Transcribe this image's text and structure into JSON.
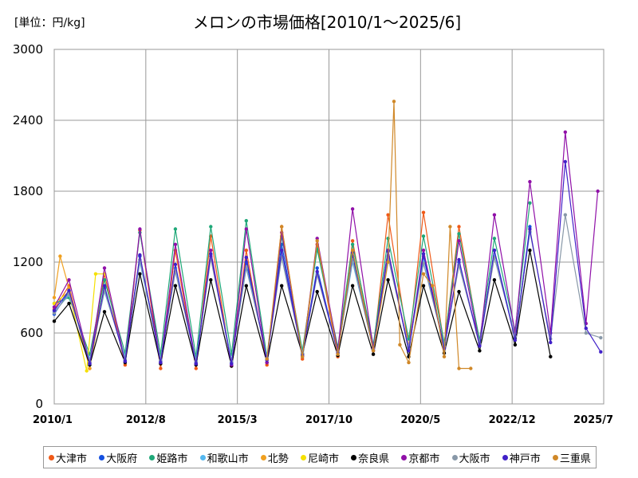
{
  "chart_data": {
    "type": "line",
    "title": "メロンの市場価格[2010/1～2025/6]",
    "unit_label": "[単位：円/kg]",
    "ylim": [
      0,
      3000
    ],
    "y_ticks": [
      "0",
      "600",
      "1200",
      "1800",
      "2400",
      "3000"
    ],
    "x_tick_labels": [
      "2010/1",
      "2012/8",
      "2015/3",
      "2017/10",
      "2020/5",
      "2022/12",
      "2025/7"
    ],
    "xlim": [
      "2010-01",
      "2025-07"
    ],
    "grid": true,
    "legend_position": "bottom",
    "series": [
      {
        "name": "大津市",
        "color": "#f05a18",
        "x": [
          "2010-01",
          "2010-06",
          "2011-01",
          "2011-06",
          "2012-01",
          "2012-06",
          "2013-01",
          "2013-06",
          "2014-01",
          "2014-06",
          "2015-01",
          "2015-06",
          "2016-01",
          "2016-06",
          "2017-01",
          "2017-06",
          "2018-01",
          "2018-06",
          "2019-01",
          "2019-06",
          "2020-01",
          "2020-06",
          "2021-01",
          "2021-06",
          "2022-01"
        ],
        "values": [
          800,
          1000,
          300,
          1100,
          330,
          1470,
          300,
          1300,
          300,
          1420,
          320,
          1300,
          330,
          1500,
          380,
          1350,
          400,
          1380,
          450,
          1600,
          480,
          1620,
          500,
          1500,
          520
        ]
      },
      {
        "name": "大阪府",
        "color": "#1550e0",
        "x": [
          "2010-01",
          "2010-06",
          "2011-01",
          "2011-06",
          "2012-01",
          "2012-06",
          "2013-01",
          "2013-06",
          "2014-01",
          "2014-06",
          "2015-01",
          "2015-06",
          "2016-01",
          "2016-06",
          "2017-01",
          "2017-06",
          "2018-01",
          "2018-06",
          "2019-01",
          "2019-06",
          "2020-01",
          "2020-06",
          "2021-01",
          "2021-06",
          "2022-01",
          "2022-06",
          "2023-01",
          "2023-06"
        ],
        "values": [
          760,
          950,
          350,
          980,
          370,
          1250,
          360,
          1150,
          350,
          1250,
          350,
          1200,
          380,
          1350,
          420,
          1150,
          430,
          1250,
          480,
          1300,
          450,
          1250,
          470,
          1200,
          500,
          1300,
          560,
          1500
        ]
      },
      {
        "name": "姫路市",
        "color": "#1fa878",
        "x": [
          "2010-01",
          "2010-06",
          "2011-01",
          "2011-06",
          "2012-01",
          "2012-06",
          "2013-01",
          "2013-06",
          "2014-01",
          "2014-06",
          "2015-01",
          "2015-06",
          "2016-01",
          "2016-06",
          "2017-01",
          "2017-06",
          "2018-01",
          "2018-06",
          "2019-01",
          "2019-06",
          "2020-01",
          "2020-06",
          "2021-01",
          "2021-06",
          "2022-01",
          "2022-06",
          "2023-01",
          "2023-06"
        ],
        "values": [
          850,
          900,
          420,
          1050,
          430,
          1450,
          420,
          1480,
          400,
          1500,
          420,
          1550,
          400,
          1420,
          450,
          1310,
          480,
          1350,
          500,
          1400,
          550,
          1420,
          520,
          1440,
          540,
          1400,
          620,
          1700
        ]
      },
      {
        "name": "和歌山市",
        "color": "#55b8f0",
        "x": [
          "2010-01",
          "2010-06",
          "2011-01",
          "2011-06",
          "2012-01",
          "2012-06",
          "2013-01",
          "2013-06",
          "2014-01",
          "2014-06",
          "2015-01",
          "2015-06",
          "2016-01",
          "2016-06",
          "2017-01",
          "2017-06",
          "2018-01",
          "2018-06",
          "2019-01",
          "2019-06",
          "2020-01",
          "2020-06",
          "2021-01",
          "2021-06",
          "2022-01",
          "2022-06",
          "2023-01",
          "2023-06"
        ],
        "values": [
          780,
          920,
          380,
          950,
          400,
          1200,
          380,
          1150,
          370,
          1260,
          370,
          1150,
          400,
          1250,
          430,
          1100,
          450,
          1200,
          470,
          1250,
          480,
          1200,
          500,
          1180,
          520,
          1250,
          580,
          1450
        ]
      },
      {
        "name": "北勢",
        "color": "#f0a020",
        "x": [
          "2010-01",
          "2010-03",
          "2010-06",
          "2011-01",
          "2011-06"
        ],
        "values": [
          900,
          1250,
          980,
          300,
          1000
        ]
      },
      {
        "name": "尼崎市",
        "color": "#f5e000",
        "x": [
          "2010-01",
          "2010-06",
          "2010-12",
          "2011-03",
          "2011-06"
        ],
        "values": [
          850,
          950,
          280,
          1100,
          1100
        ]
      },
      {
        "name": "奈良県",
        "color": "#000000",
        "x": [
          "2010-01",
          "2010-06",
          "2011-01",
          "2011-06",
          "2012-01",
          "2012-06",
          "2013-01",
          "2013-06",
          "2014-01",
          "2014-06",
          "2015-01",
          "2015-06",
          "2016-01",
          "2016-06",
          "2017-01",
          "2017-06",
          "2018-01",
          "2018-06",
          "2019-01",
          "2019-06",
          "2020-01",
          "2020-06",
          "2021-01",
          "2021-06",
          "2022-01",
          "2022-06",
          "2023-01",
          "2023-06",
          "2024-01"
        ],
        "values": [
          700,
          850,
          330,
          780,
          350,
          1100,
          340,
          1000,
          330,
          1050,
          320,
          1000,
          350,
          1000,
          420,
          950,
          410,
          1000,
          420,
          1050,
          400,
          1000,
          430,
          950,
          450,
          1050,
          500,
          1300,
          400
        ]
      },
      {
        "name": "京都市",
        "color": "#9010a8",
        "x": [
          "2010-01",
          "2010-06",
          "2011-01",
          "2011-06",
          "2012-01",
          "2012-06",
          "2013-01",
          "2013-06",
          "2014-01",
          "2014-06",
          "2015-01",
          "2015-06",
          "2016-01",
          "2016-06",
          "2017-01",
          "2017-06",
          "2018-01",
          "2018-06",
          "2019-01",
          "2019-06",
          "2020-01",
          "2020-06",
          "2021-01",
          "2021-06",
          "2022-01",
          "2022-06",
          "2023-01",
          "2023-06",
          "2024-01",
          "2024-06",
          "2025-01",
          "2025-05"
        ],
        "values": [
          820,
          1050,
          350,
          1150,
          360,
          1480,
          350,
          1350,
          340,
          1300,
          330,
          1480,
          350,
          1450,
          400,
          1400,
          450,
          1650,
          470,
          1300,
          460,
          1300,
          480,
          1380,
          500,
          1600,
          600,
          1880,
          600,
          2300,
          680,
          1800
        ]
      },
      {
        "name": "大阪市",
        "color": "#8898a8",
        "x": [
          "2010-01",
          "2010-06",
          "2011-01",
          "2011-06",
          "2012-01",
          "2012-06",
          "2013-01",
          "2013-06",
          "2014-01",
          "2014-06",
          "2015-01",
          "2015-06",
          "2016-01",
          "2016-06",
          "2017-01",
          "2017-06",
          "2018-01",
          "2018-06",
          "2019-01",
          "2019-06",
          "2020-01",
          "2020-06",
          "2021-01",
          "2021-06",
          "2022-01",
          "2022-06",
          "2023-01",
          "2023-06",
          "2024-01",
          "2024-06",
          "2025-01",
          "2025-06"
        ],
        "values": [
          770,
          930,
          360,
          960,
          380,
          1220,
          370,
          1120,
          360,
          1230,
          360,
          1160,
          390,
          1240,
          420,
          1090,
          440,
          1220,
          460,
          1240,
          470,
          1190,
          490,
          1170,
          510,
          1240,
          570,
          1460,
          550,
          1600,
          600,
          560
        ]
      },
      {
        "name": "神戸市",
        "color": "#4020c8",
        "x": [
          "2010-01",
          "2010-06",
          "2011-01",
          "2011-06",
          "2012-01",
          "2012-06",
          "2013-01",
          "2013-06",
          "2014-01",
          "2014-06",
          "2015-01",
          "2015-06",
          "2016-01",
          "2016-06",
          "2017-01",
          "2017-06",
          "2018-01",
          "2018-06",
          "2019-01",
          "2019-06",
          "2020-01",
          "2020-06",
          "2021-01",
          "2021-06",
          "2022-01",
          "2022-06",
          "2023-01",
          "2023-06",
          "2024-01",
          "2024-06",
          "2025-01",
          "2025-06"
        ],
        "values": [
          790,
          960,
          340,
          1000,
          360,
          1260,
          350,
          1180,
          340,
          1270,
          340,
          1240,
          370,
          1300,
          410,
          1120,
          430,
          1280,
          450,
          1290,
          450,
          1270,
          470,
          1220,
          490,
          1300,
          540,
          1480,
          520,
          2050,
          640,
          440
        ]
      },
      {
        "name": "三重県",
        "color": "#d08828",
        "x": [
          "2016-01",
          "2016-06",
          "2017-01",
          "2017-06",
          "2018-01",
          "2018-06",
          "2019-01",
          "2019-06",
          "2019-08",
          "2019-10",
          "2020-01",
          "2020-06",
          "2020-09",
          "2021-01",
          "2021-03",
          "2021-06",
          "2021-10"
        ],
        "values": [
          380,
          1500,
          400,
          1380,
          420,
          1300,
          450,
          1200,
          2560,
          500,
          350,
          1100,
          1000,
          400,
          1500,
          300,
          300
        ]
      }
    ]
  }
}
